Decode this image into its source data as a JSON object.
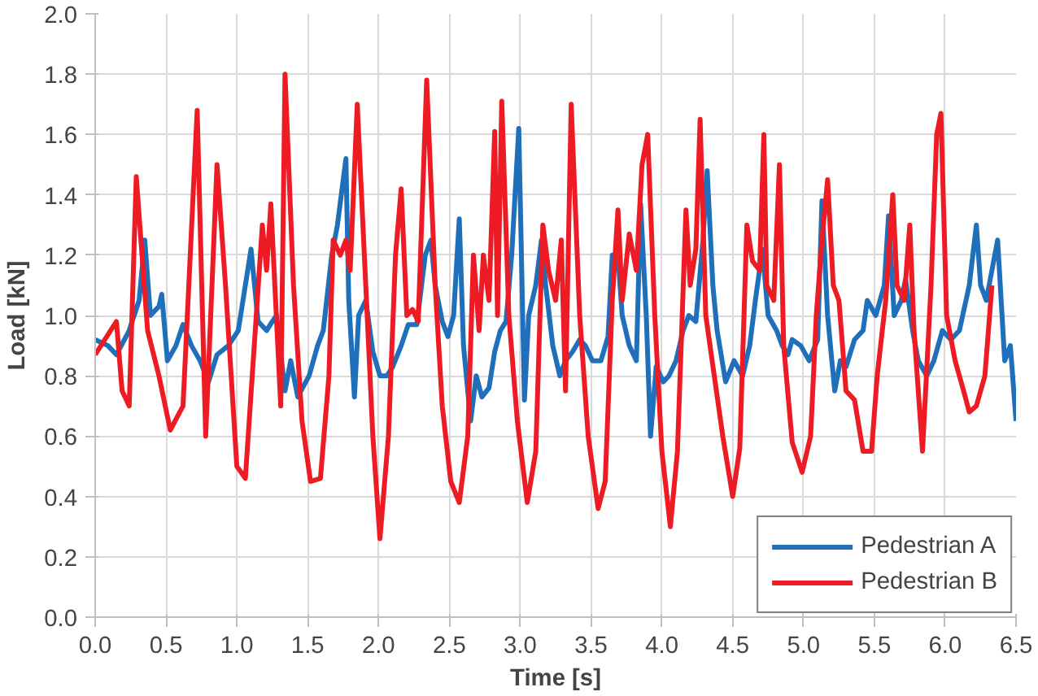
{
  "chart_data": {
    "type": "line",
    "xlabel": "Time [s]",
    "ylabel": "Load [kN]",
    "xlim": [
      0,
      6.5
    ],
    "ylim": [
      0,
      2
    ],
    "xticks": [
      {
        "value": 0,
        "label": "0.0"
      },
      {
        "value": 0.5,
        "label": "0.5"
      },
      {
        "value": 1,
        "label": "1.0"
      },
      {
        "value": 1.5,
        "label": "1.5"
      },
      {
        "value": 2,
        "label": "2.0"
      },
      {
        "value": 2.5,
        "label": "2.5"
      },
      {
        "value": 3,
        "label": "3.0"
      },
      {
        "value": 3.5,
        "label": "3.5"
      },
      {
        "value": 4,
        "label": "4.0"
      },
      {
        "value": 4.5,
        "label": "4.5"
      },
      {
        "value": 5,
        "label": "5.0"
      },
      {
        "value": 5.5,
        "label": "5.5"
      },
      {
        "value": 6,
        "label": "6.0"
      },
      {
        "value": 6.5,
        "label": "6.5"
      }
    ],
    "yticks": [
      {
        "value": 0,
        "label": "0.0"
      },
      {
        "value": 0.2,
        "label": "0.2"
      },
      {
        "value": 0.4,
        "label": "0.4"
      },
      {
        "value": 0.6,
        "label": "0.6"
      },
      {
        "value": 0.8,
        "label": "0.8"
      },
      {
        "value": 1,
        "label": "1.0"
      },
      {
        "value": 1.2,
        "label": "1.2"
      },
      {
        "value": 1.4,
        "label": "1.4"
      },
      {
        "value": 1.6,
        "label": "1.6"
      },
      {
        "value": 1.8,
        "label": "1.8"
      },
      {
        "value": 2,
        "label": "2.0"
      }
    ],
    "grid": true,
    "legend": "bottom right",
    "line_style": "solid",
    "series": [
      {
        "name": "Pedestrian A",
        "color": "#1f6fba",
        "x": [
          0,
          0.09,
          0.15,
          0.24,
          0.31,
          0.35,
          0.39,
          0.45,
          0.47,
          0.51,
          0.57,
          0.62,
          0.68,
          0.74,
          0.8,
          0.86,
          0.94,
          1.01,
          1.1,
          1.15,
          1.21,
          1.25,
          1.28,
          1.34,
          1.38,
          1.43,
          1.51,
          1.57,
          1.61,
          1.67,
          1.71,
          1.77,
          1.79,
          1.83,
          1.86,
          1.91,
          1.96,
          2.01,
          2.06,
          2.1,
          2.16,
          2.21,
          2.27,
          2.33,
          2.37,
          2.4,
          2.45,
          2.49,
          2.53,
          2.57,
          2.6,
          2.65,
          2.69,
          2.73,
          2.78,
          2.82,
          2.86,
          2.9,
          2.94,
          2.99,
          3.03,
          3.06,
          3.11,
          3.15,
          3.18,
          3.23,
          3.28,
          3.32,
          3.37,
          3.42,
          3.46,
          3.51,
          3.57,
          3.62,
          3.65,
          3.69,
          3.72,
          3.77,
          3.82,
          3.85,
          3.89,
          3.92,
          3.96,
          4.01,
          4.05,
          4.1,
          4.15,
          4.19,
          4.24,
          4.29,
          4.32,
          4.36,
          4.39,
          4.45,
          4.51,
          4.57,
          4.62,
          4.66,
          4.71,
          4.75,
          4.81,
          4.85,
          4.89,
          4.92,
          4.98,
          5.04,
          5.1,
          5.13,
          5.17,
          5.22,
          5.26,
          5.3,
          5.36,
          5.42,
          5.45,
          5.51,
          5.57,
          5.6,
          5.64,
          5.69,
          5.72,
          5.77,
          5.81,
          5.87,
          5.92,
          5.98,
          6.04,
          6.1,
          6.17,
          6.22,
          6.25,
          6.29,
          6.37,
          6.42,
          6.46,
          6.5
        ],
        "values": [
          0.92,
          0.9,
          0.87,
          0.95,
          1.05,
          1.25,
          1.0,
          1.03,
          1.07,
          0.85,
          0.9,
          0.97,
          0.9,
          0.85,
          0.78,
          0.87,
          0.9,
          0.95,
          1.22,
          0.98,
          0.95,
          0.98,
          1.0,
          0.75,
          0.85,
          0.73,
          0.8,
          0.9,
          0.95,
          1.2,
          1.3,
          1.52,
          1.05,
          0.73,
          1.0,
          1.05,
          0.88,
          0.8,
          0.8,
          0.83,
          0.9,
          0.97,
          0.97,
          1.2,
          1.25,
          1.1,
          0.98,
          0.93,
          1.0,
          1.32,
          0.9,
          0.65,
          0.8,
          0.73,
          0.76,
          0.88,
          0.95,
          0.98,
          1.2,
          1.62,
          0.72,
          1.0,
          1.1,
          1.25,
          1.1,
          0.9,
          0.8,
          0.85,
          0.88,
          0.92,
          0.9,
          0.85,
          0.85,
          0.93,
          1.2,
          1.2,
          1.0,
          0.9,
          0.85,
          1.37,
          1.0,
          0.6,
          0.83,
          0.78,
          0.8,
          0.85,
          0.95,
          1.0,
          0.98,
          1.25,
          1.48,
          1.1,
          0.95,
          0.78,
          0.85,
          0.8,
          0.9,
          1.05,
          1.22,
          1.0,
          0.95,
          0.9,
          0.87,
          0.92,
          0.9,
          0.85,
          0.92,
          1.38,
          1.0,
          0.75,
          0.85,
          0.83,
          0.92,
          0.95,
          1.05,
          1.0,
          1.1,
          1.33,
          1.0,
          1.05,
          1.12,
          0.95,
          0.85,
          0.8,
          0.85,
          0.95,
          0.92,
          0.95,
          1.1,
          1.3,
          1.1,
          1.05,
          1.25,
          0.85,
          0.9,
          0.65
        ]
      },
      {
        "name": "Pedestrian B",
        "color": "#ed1c24",
        "x": [
          0,
          0.15,
          0.19,
          0.24,
          0.29,
          0.37,
          0.45,
          0.53,
          0.62,
          0.72,
          0.78,
          0.86,
          0.92,
          1.0,
          1.06,
          1.13,
          1.18,
          1.21,
          1.24,
          1.31,
          1.34,
          1.4,
          1.46,
          1.52,
          1.59,
          1.65,
          1.68,
          1.73,
          1.77,
          1.8,
          1.85,
          1.9,
          1.96,
          2.01,
          2.07,
          2.12,
          2.16,
          2.2,
          2.24,
          2.28,
          2.34,
          2.4,
          2.45,
          2.51,
          2.57,
          2.63,
          2.67,
          2.71,
          2.74,
          2.78,
          2.82,
          2.84,
          2.87,
          2.92,
          2.98,
          3.05,
          3.11,
          3.16,
          3.2,
          3.25,
          3.29,
          3.32,
          3.36,
          3.42,
          3.48,
          3.55,
          3.6,
          3.65,
          3.69,
          3.72,
          3.77,
          3.82,
          3.86,
          3.9,
          3.95,
          4.0,
          4.06,
          4.11,
          4.17,
          4.2,
          4.24,
          4.27,
          4.31,
          4.37,
          4.43,
          4.5,
          4.55,
          4.6,
          4.64,
          4.69,
          4.72,
          4.74,
          4.79,
          4.83,
          4.86,
          4.92,
          4.99,
          5.05,
          5.09,
          5.13,
          5.17,
          5.21,
          5.25,
          5.3,
          5.36,
          5.42,
          5.48,
          5.52,
          5.58,
          5.63,
          5.66,
          5.71,
          5.75,
          5.78,
          5.84,
          5.9,
          5.94,
          5.97,
          6.01,
          6.07,
          6.13,
          6.17,
          6.22,
          6.28,
          6.33
        ],
        "values": [
          0.87,
          0.98,
          0.75,
          0.7,
          1.46,
          0.95,
          0.8,
          0.62,
          0.7,
          1.68,
          0.6,
          1.5,
          1.1,
          0.5,
          0.46,
          0.95,
          1.3,
          1.15,
          1.37,
          0.7,
          1.8,
          1.1,
          0.65,
          0.45,
          0.46,
          0.8,
          1.25,
          1.2,
          1.25,
          1.15,
          1.7,
          1.2,
          0.6,
          0.26,
          0.6,
          1.2,
          1.42,
          1.0,
          1.02,
          0.98,
          1.78,
          1.1,
          0.7,
          0.45,
          0.38,
          0.6,
          1.2,
          0.95,
          1.2,
          1.05,
          1.61,
          1.0,
          1.71,
          1.0,
          0.65,
          0.38,
          0.55,
          1.3,
          1.15,
          1.05,
          1.25,
          0.75,
          1.7,
          1.0,
          0.6,
          0.36,
          0.45,
          1.05,
          1.35,
          1.05,
          1.27,
          1.15,
          1.5,
          1.6,
          1.0,
          0.55,
          0.3,
          0.55,
          1.35,
          1.1,
          1.22,
          1.65,
          1.0,
          0.8,
          0.6,
          0.4,
          0.56,
          1.3,
          1.18,
          1.15,
          1.6,
          1.1,
          1.05,
          1.5,
          0.9,
          0.58,
          0.48,
          0.6,
          1.0,
          1.25,
          1.45,
          1.1,
          1.05,
          0.75,
          0.72,
          0.55,
          0.55,
          0.8,
          1.05,
          1.4,
          1.1,
          1.05,
          1.3,
          0.95,
          0.55,
          1.1,
          1.6,
          1.67,
          1.0,
          0.85,
          0.75,
          0.68,
          0.7,
          0.8,
          1.1
        ]
      }
    ]
  }
}
